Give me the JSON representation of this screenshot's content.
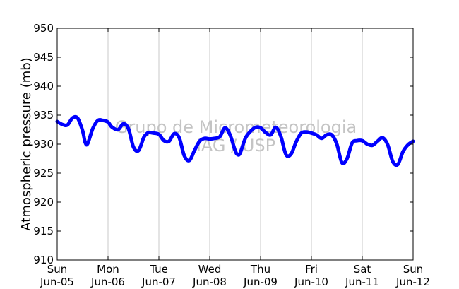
{
  "chart_data": {
    "type": "line",
    "title": "",
    "xlabel": "",
    "ylabel": "Atmospheric pressure (mb)",
    "ylim": [
      910,
      950
    ],
    "yticks": [
      910,
      915,
      920,
      925,
      930,
      935,
      940,
      945,
      950
    ],
    "xlim": [
      0,
      7
    ],
    "xtick_positions": [
      0,
      1,
      2,
      3,
      4,
      5,
      6,
      7
    ],
    "xticks": [
      {
        "day": "Sun",
        "date": "Jun-05"
      },
      {
        "day": "Mon",
        "date": "Jun-06"
      },
      {
        "day": "Tue",
        "date": "Jun-07"
      },
      {
        "day": "Wed",
        "date": "Jun-08"
      },
      {
        "day": "Thu",
        "date": "Jun-09"
      },
      {
        "day": "Fri",
        "date": "Jun-10"
      },
      {
        "day": "Sat",
        "date": "Jun-11"
      },
      {
        "day": "Sun",
        "date": "Jun-12"
      }
    ],
    "grid": "vertical",
    "series": [
      {
        "color": "#0000ff",
        "x": [
          0,
          0.1,
          0.2,
          0.3,
          0.4,
          0.5,
          0.55,
          0.6,
          0.7,
          0.8,
          0.9,
          1.0,
          1.05,
          1.1,
          1.2,
          1.3,
          1.4,
          1.5,
          1.6,
          1.7,
          1.75,
          1.8,
          1.9,
          2.0,
          2.1,
          2.2,
          2.3,
          2.4,
          2.5,
          2.6,
          2.7,
          2.8,
          2.9,
          3.0,
          3.1,
          3.2,
          3.3,
          3.4,
          3.5,
          3.55,
          3.6,
          3.7,
          3.8,
          3.9,
          4.0,
          4.1,
          4.2,
          4.3,
          4.4,
          4.5,
          4.6,
          4.7,
          4.8,
          4.9,
          5.0,
          5.1,
          5.2,
          5.3,
          5.4,
          5.5,
          5.6,
          5.7,
          5.8,
          5.9,
          6.0,
          6.1,
          6.2,
          6.3,
          6.4,
          6.5,
          6.6,
          6.7,
          6.8,
          6.9,
          7.0
        ],
        "y": [
          933.9,
          933.4,
          933.3,
          934.5,
          934.5,
          932.3,
          930.3,
          930.1,
          932.7,
          934.1,
          934.1,
          933.8,
          933.2,
          932.8,
          932.5,
          933.5,
          932.7,
          929.5,
          928.9,
          931.1,
          931.7,
          932.0,
          931.9,
          931.7,
          930.6,
          930.5,
          931.8,
          931.1,
          928.0,
          927.2,
          928.9,
          930.5,
          931.0,
          930.9,
          931.0,
          931.3,
          932.8,
          931.6,
          928.9,
          928.2,
          928.5,
          931.0,
          932.2,
          932.9,
          932.8,
          932.0,
          931.6,
          932.9,
          931.3,
          928.2,
          928.3,
          930.4,
          931.9,
          932.1,
          931.9,
          931.6,
          931.0,
          931.6,
          931.6,
          930.0,
          926.8,
          927.5,
          930.2,
          930.6,
          930.6,
          930.0,
          929.8,
          930.5,
          931.1,
          929.9,
          927.0,
          926.5,
          928.7,
          929.9,
          930.5
        ]
      }
    ],
    "annotations": [
      "Grupo de Micrometeorologia",
      "IAG / USP"
    ]
  }
}
